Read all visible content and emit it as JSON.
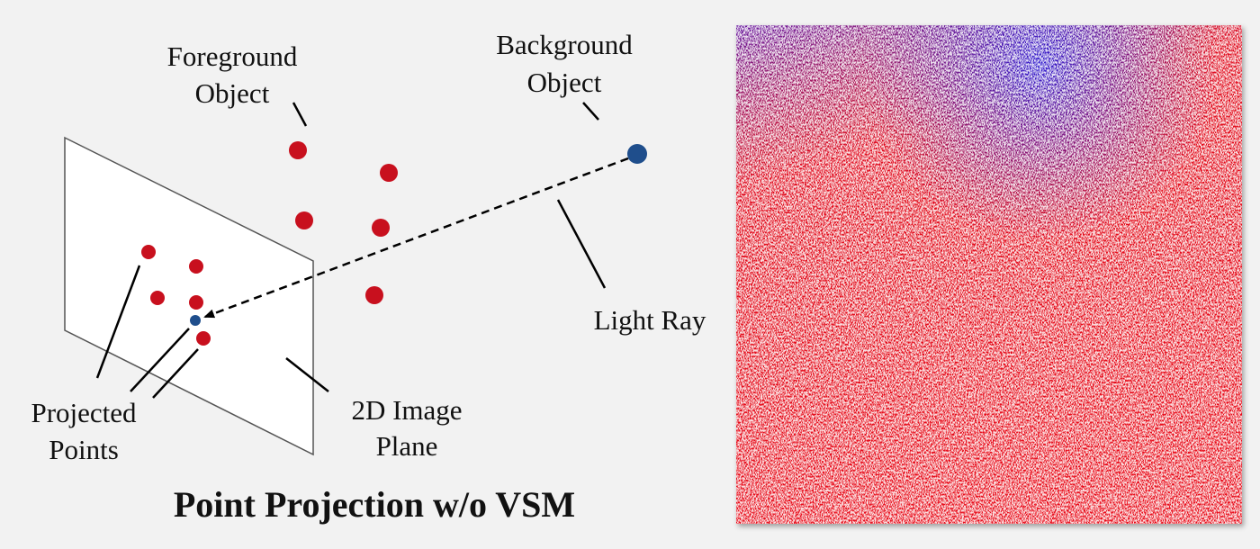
{
  "labels": {
    "foreground_object": [
      "Foreground",
      "Object"
    ],
    "background_object": [
      "Background",
      "Object"
    ],
    "light_ray": [
      "Light Ray"
    ],
    "projected_points": [
      "Projected",
      "Points"
    ],
    "image_plane": [
      "2D Image",
      "Plane"
    ]
  },
  "title": "Point Projection w/o VSM"
}
